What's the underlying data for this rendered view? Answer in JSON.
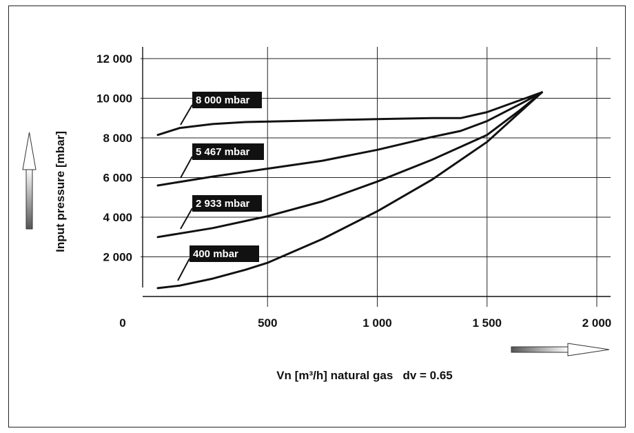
{
  "chart_data": {
    "type": "line",
    "xlabel": "Vn [m³/h] natural gas   dv = 0.65",
    "ylabel": "Input pressure [mbar]",
    "xlim": [
      0,
      2000
    ],
    "ylim": [
      0,
      12000
    ],
    "x_ticks": [
      "0",
      "500",
      "1 000",
      "1 500",
      "2 000"
    ],
    "y_ticks": [
      "2 000",
      "4 000",
      "6 000",
      "8 000",
      "10 000",
      "12 000"
    ],
    "grid": true,
    "series": [
      {
        "name": "8 000 mbar",
        "x": [
          0,
          100,
          250,
          400,
          600,
          800,
          1000,
          1250,
          1380,
          1500,
          1650,
          1750
        ],
        "y": [
          8150,
          8500,
          8700,
          8800,
          8850,
          8900,
          8950,
          9000,
          9000,
          9300,
          9900,
          10300
        ]
      },
      {
        "name": "5 467 mbar",
        "x": [
          0,
          250,
          500,
          750,
          1000,
          1250,
          1380,
          1500,
          1650,
          1750
        ],
        "y": [
          5600,
          6050,
          6450,
          6850,
          7400,
          8050,
          8350,
          8850,
          9700,
          10300
        ]
      },
      {
        "name": "2 933 mbar",
        "x": [
          0,
          250,
          500,
          750,
          1000,
          1250,
          1500,
          1650,
          1750
        ],
        "y": [
          3000,
          3450,
          4050,
          4800,
          5800,
          6900,
          8150,
          9400,
          10300
        ]
      },
      {
        "name": "400 mbar",
        "x": [
          0,
          100,
          250,
          400,
          500,
          750,
          1000,
          1250,
          1500,
          1650,
          1750
        ],
        "y": [
          420,
          550,
          900,
          1350,
          1700,
          2900,
          4300,
          5900,
          7800,
          9300,
          10300
        ]
      }
    ]
  }
}
